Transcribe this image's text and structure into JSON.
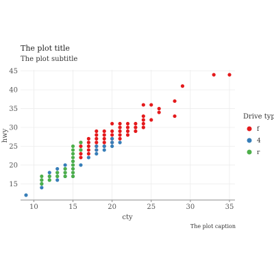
{
  "chart_data": {
    "type": "scatter",
    "title": "The plot title",
    "subtitle": "The plot subtitle",
    "caption": "The plot caption",
    "xlabel": "cty",
    "ylabel": "hwy",
    "xlim": [
      8.3,
      35.7
    ],
    "ylim": [
      10.7,
      45.3
    ],
    "xticks": [
      10,
      15,
      20,
      25,
      30,
      35
    ],
    "yticks": [
      15,
      20,
      25,
      30,
      35,
      40,
      45
    ],
    "grid": true,
    "legend": {
      "title": "Drive type",
      "position": "right"
    },
    "series": [
      {
        "name": "f",
        "color": "#e41a1c",
        "points": [
          [
            16,
            26
          ],
          [
            16,
            25
          ],
          [
            16,
            24
          ],
          [
            16,
            23
          ],
          [
            16,
            22
          ],
          [
            17,
            27
          ],
          [
            17,
            26
          ],
          [
            17,
            25
          ],
          [
            17,
            24
          ],
          [
            17,
            23
          ],
          [
            18,
            29
          ],
          [
            18,
            28
          ],
          [
            18,
            27
          ],
          [
            18,
            26
          ],
          [
            18,
            25
          ],
          [
            18,
            24
          ],
          [
            19,
            29
          ],
          [
            19,
            28
          ],
          [
            19,
            27
          ],
          [
            19,
            26
          ],
          [
            19,
            25
          ],
          [
            20,
            31
          ],
          [
            20,
            29
          ],
          [
            20,
            28
          ],
          [
            20,
            27
          ],
          [
            20,
            26
          ],
          [
            21,
            31
          ],
          [
            21,
            30
          ],
          [
            21,
            29
          ],
          [
            21,
            28
          ],
          [
            21,
            27
          ],
          [
            22,
            31
          ],
          [
            22,
            30
          ],
          [
            22,
            29
          ],
          [
            22,
            28
          ],
          [
            23,
            31
          ],
          [
            23,
            30
          ],
          [
            23,
            29
          ],
          [
            24,
            36
          ],
          [
            24,
            33
          ],
          [
            24,
            32
          ],
          [
            24,
            31
          ],
          [
            24,
            30
          ],
          [
            25,
            36
          ],
          [
            25,
            32
          ],
          [
            26,
            35
          ],
          [
            26,
            34
          ],
          [
            28,
            37
          ],
          [
            28,
            33
          ],
          [
            29,
            41
          ],
          [
            33,
            44
          ],
          [
            35,
            44
          ]
        ]
      },
      {
        "name": "4",
        "color": "#377eb8",
        "points": [
          [
            9,
            12
          ],
          [
            11,
            14
          ],
          [
            11,
            15
          ],
          [
            11,
            16
          ],
          [
            12,
            16
          ],
          [
            12,
            17
          ],
          [
            12,
            18
          ],
          [
            13,
            16
          ],
          [
            13,
            17
          ],
          [
            13,
            18
          ],
          [
            13,
            19
          ],
          [
            14,
            17
          ],
          [
            14,
            18
          ],
          [
            14,
            19
          ],
          [
            14,
            20
          ],
          [
            15,
            17
          ],
          [
            15,
            18
          ],
          [
            15,
            19
          ],
          [
            15,
            20
          ],
          [
            15,
            21
          ],
          [
            16,
            20
          ],
          [
            17,
            22
          ],
          [
            18,
            23
          ],
          [
            18,
            24
          ],
          [
            18,
            25
          ],
          [
            19,
            24
          ],
          [
            19,
            25
          ],
          [
            20,
            25
          ],
          [
            20,
            26
          ],
          [
            20,
            27
          ],
          [
            21,
            26
          ]
        ]
      },
      {
        "name": "r",
        "color": "#4daf4a",
        "points": [
          [
            11,
            15
          ],
          [
            11,
            16
          ],
          [
            11,
            17
          ],
          [
            12,
            16
          ],
          [
            12,
            17
          ],
          [
            13,
            17
          ],
          [
            13,
            18
          ],
          [
            14,
            17
          ],
          [
            14,
            18
          ],
          [
            14,
            19
          ],
          [
            15,
            17
          ],
          [
            15,
            18
          ],
          [
            15,
            19
          ],
          [
            15,
            20
          ],
          [
            15,
            21
          ],
          [
            15,
            22
          ],
          [
            15,
            23
          ],
          [
            15,
            24
          ],
          [
            15,
            25
          ],
          [
            16,
            24
          ],
          [
            16,
            26
          ]
        ]
      }
    ]
  }
}
